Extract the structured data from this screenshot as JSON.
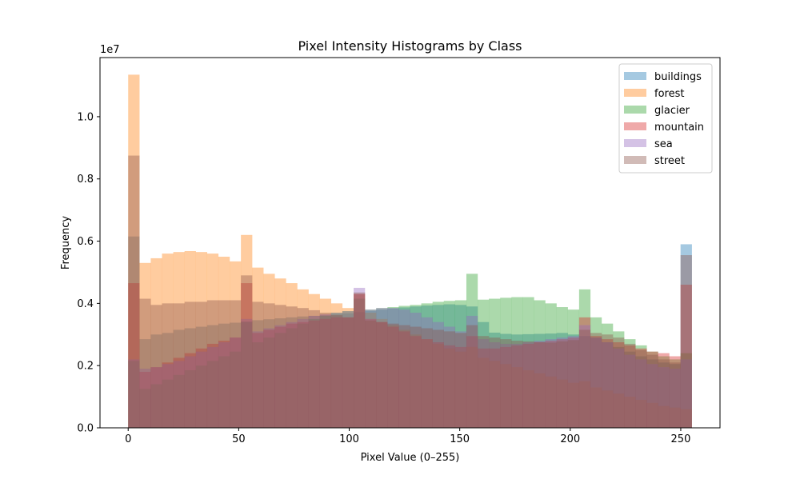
{
  "chart_data": {
    "type": "histogram",
    "title": "Pixel Intensity Histograms by Class",
    "xlabel": "Pixel Value (0–255)",
    "ylabel": "Frequency",
    "y_multiplier_label": "1e7",
    "y_multiplier": 10000000,
    "xlim": [
      -12.75,
      267.75
    ],
    "ylim": [
      0,
      11900000
    ],
    "bins": 50,
    "bin_range": [
      0,
      255
    ],
    "x_ticks": [
      0,
      50,
      100,
      150,
      200,
      250
    ],
    "x_tick_labels": [
      "0",
      "50",
      "100",
      "150",
      "200",
      "250"
    ],
    "y_ticks": [
      0,
      2000000,
      4000000,
      6000000,
      8000000,
      10000000
    ],
    "y_tick_labels": [
      "0.0",
      "0.2",
      "0.4",
      "0.6",
      "0.8",
      "1.0"
    ],
    "grid": false,
    "legend_position": "top-right",
    "bar_opacity": 0.4,
    "series": [
      {
        "name": "buildings",
        "color": "#1f77b4",
        "values": [
          6150000,
          2850000,
          3000000,
          3050000,
          3150000,
          3200000,
          3250000,
          3300000,
          3350000,
          3380000,
          3420000,
          3460000,
          3490000,
          3520000,
          3550000,
          3580000,
          3600000,
          3620000,
          3650000,
          3680000,
          3720000,
          3760000,
          3800000,
          3840000,
          3870000,
          3900000,
          3930000,
          3950000,
          3970000,
          3950000,
          3900000,
          3400000,
          3060000,
          3020000,
          3000000,
          3010000,
          3020000,
          3030000,
          3050000,
          3000000,
          2950000,
          2900000,
          2750000,
          2600000,
          2450000,
          2300000,
          2200000,
          2100000,
          2050000,
          5900000
        ]
      },
      {
        "name": "forest",
        "color": "#ff7f0e",
        "values": [
          11350000,
          5300000,
          5450000,
          5600000,
          5650000,
          5680000,
          5650000,
          5600000,
          5500000,
          5350000,
          6200000,
          5150000,
          4950000,
          4800000,
          4650000,
          4450000,
          4300000,
          4150000,
          4000000,
          3850000,
          4300000,
          3700000,
          3500000,
          3300000,
          3150000,
          3000000,
          2850000,
          2700000,
          2550000,
          2450000,
          2600000,
          2250000,
          2150000,
          2050000,
          1950000,
          1850000,
          1750000,
          1650000,
          1550000,
          1450000,
          1500000,
          1300000,
          1200000,
          1100000,
          1000000,
          900000,
          800000,
          700000,
          650000,
          600000
        ]
      },
      {
        "name": "glacier",
        "color": "#2ca02c",
        "values": [
          2150000,
          1250000,
          1400000,
          1550000,
          1700000,
          1850000,
          2000000,
          2150000,
          2300000,
          2450000,
          3400000,
          2750000,
          2900000,
          3050000,
          3200000,
          3350000,
          3500000,
          3600000,
          3700000,
          3750000,
          4150000,
          3800000,
          3850000,
          3880000,
          3920000,
          3950000,
          4000000,
          4050000,
          4080000,
          4100000,
          4950000,
          4120000,
          4150000,
          4180000,
          4200000,
          4200000,
          4100000,
          4000000,
          3880000,
          3800000,
          4450000,
          3550000,
          3350000,
          3100000,
          2850000,
          2650000,
          2450000,
          2300000,
          2200000,
          2400000
        ]
      },
      {
        "name": "mountain",
        "color": "#d62728",
        "values": [
          4650000,
          1800000,
          1950000,
          2100000,
          2250000,
          2400000,
          2550000,
          2700000,
          2800000,
          2900000,
          4650000,
          3050000,
          3150000,
          3250000,
          3350000,
          3400000,
          3450000,
          3500000,
          3550000,
          3550000,
          4300000,
          3500000,
          3400000,
          3250000,
          3100000,
          2950000,
          2850000,
          2750000,
          2650000,
          2600000,
          2950000,
          2550000,
          2550000,
          2600000,
          2650000,
          2700000,
          2750000,
          2800000,
          2850000,
          2900000,
          3550000,
          2950000,
          2850000,
          2750000,
          2650000,
          2550000,
          2450000,
          2400000,
          2300000,
          4600000
        ]
      },
      {
        "name": "sea",
        "color": "#9467bd",
        "values": [
          2200000,
          1900000,
          1950000,
          2050000,
          2150000,
          2300000,
          2450000,
          2600000,
          2750000,
          2900000,
          3500000,
          3100000,
          3200000,
          3300000,
          3400000,
          3500000,
          3600000,
          3650000,
          3700000,
          3750000,
          4500000,
          3800000,
          3850000,
          3850000,
          3800000,
          3700000,
          3550000,
          3400000,
          3250000,
          3100000,
          3600000,
          2850000,
          2750000,
          2700000,
          2700000,
          2750000,
          2800000,
          2850000,
          2900000,
          2950000,
          3300000,
          2900000,
          2750000,
          2550000,
          2350000,
          2200000,
          2050000,
          1950000,
          1900000,
          2200000
        ]
      },
      {
        "name": "street",
        "color": "#8c564b",
        "values": [
          8750000,
          4150000,
          3950000,
          4000000,
          4000000,
          4050000,
          4050000,
          4100000,
          4100000,
          4100000,
          4900000,
          4050000,
          4000000,
          3950000,
          3900000,
          3850000,
          3780000,
          3700000,
          3620000,
          3550000,
          4350000,
          3450000,
          3400000,
          3350000,
          3300000,
          3250000,
          3200000,
          3150000,
          3100000,
          3050000,
          3300000,
          2950000,
          2900000,
          2850000,
          2800000,
          2780000,
          2760000,
          2740000,
          2780000,
          2820000,
          3150000,
          3050000,
          3000000,
          2900000,
          2700000,
          2500000,
          2350000,
          2200000,
          2100000,
          5550000
        ]
      }
    ]
  }
}
